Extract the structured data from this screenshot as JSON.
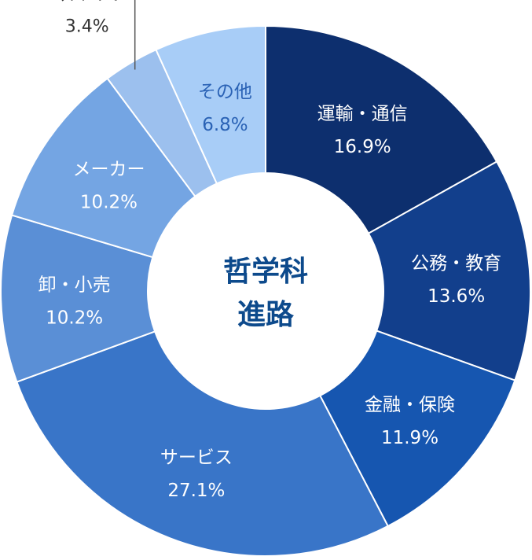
{
  "chart_data": {
    "type": "pie",
    "title": "哲学科\n進路",
    "center_title_lines": [
      "哲学科",
      "進路"
    ],
    "series": [
      {
        "label": "運輸・通信",
        "value": 16.9,
        "value_label": "16.9%",
        "color": "#0d2f6e",
        "text_color": "#ffffff"
      },
      {
        "label": "公務・教育",
        "value": 13.6,
        "value_label": "13.6%",
        "color": "#123f8c",
        "text_color": "#ffffff"
      },
      {
        "label": "金融・保険",
        "value": 11.9,
        "value_label": "11.9%",
        "color": "#1656b0",
        "text_color": "#ffffff"
      },
      {
        "label": "サービス",
        "value": 27.1,
        "value_label": "27.1%",
        "color": "#3975c8",
        "text_color": "#ffffff"
      },
      {
        "label": "卸・小売",
        "value": 10.2,
        "value_label": "10.2%",
        "color": "#5a8fd6",
        "text_color": "#ffffff"
      },
      {
        "label": "メーカー",
        "value": 10.2,
        "value_label": "10.2%",
        "color": "#74a5e3",
        "text_color": "#ffffff"
      },
      {
        "label": "マスコミ",
        "value": 3.4,
        "value_label": "3.4%",
        "color": "#9cc0ee",
        "text_color": "#333333",
        "outside": true
      },
      {
        "label": "その他",
        "value": 6.8,
        "value_label": "6.8%",
        "color": "#a8cdf7",
        "text_color": "#2a62b5"
      }
    ]
  }
}
